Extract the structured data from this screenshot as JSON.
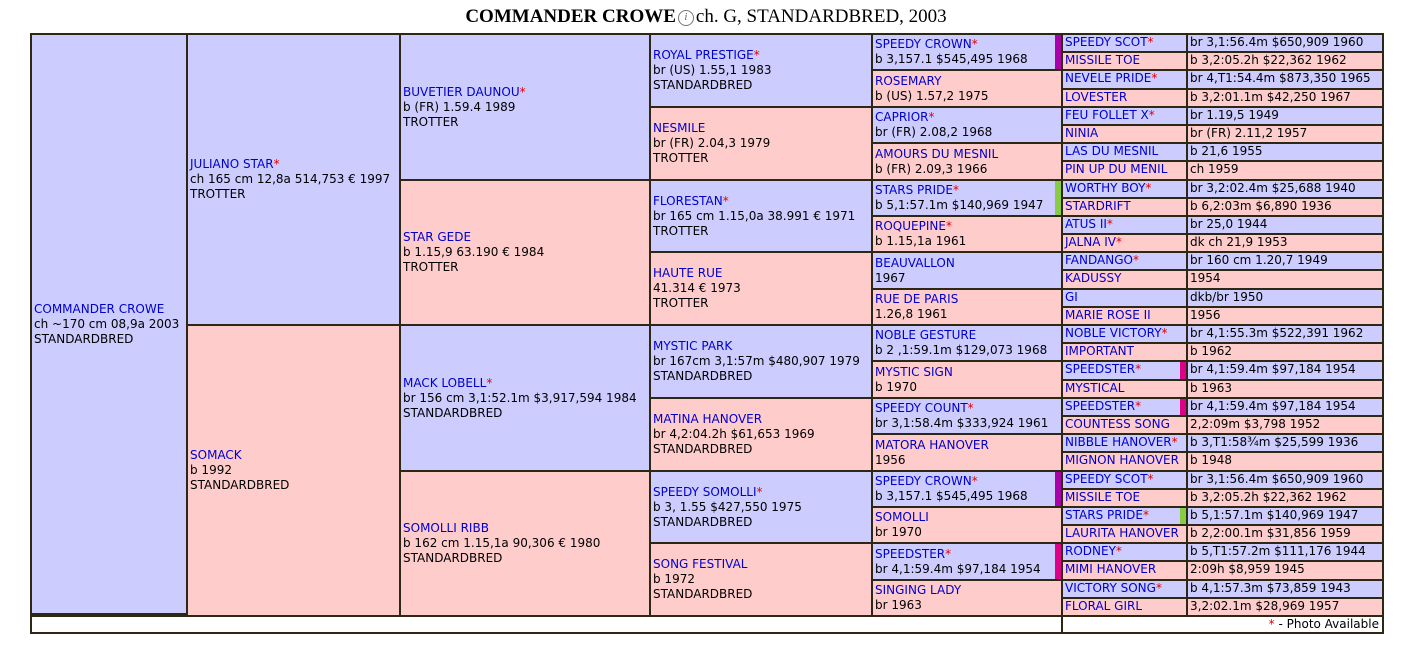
{
  "title": {
    "name": "COMMANDER CROWE",
    "rest": "ch. G, STANDARDBRED, 2003"
  },
  "legend": {
    "star": "*",
    "text": " - Photo Available"
  },
  "subject": {
    "name": "COMMANDER CROWE",
    "lines": [
      "ch ~170 cm 08,9a 2003",
      "STANDARDBRED"
    ]
  },
  "gen1": [
    {
      "name": "JULIANO STAR",
      "star": true,
      "lines": [
        "ch 165 cm 12,8a 514,753 € 1997",
        "TROTTER"
      ]
    },
    {
      "name": "SOMACK",
      "star": false,
      "lines": [
        "b 1992",
        "STANDARDBRED"
      ]
    }
  ],
  "gen2": [
    {
      "name": "BUVETIER DAUNOU",
      "star": true,
      "lines": [
        "b (FR) 1.59.4 1989",
        "TROTTER"
      ]
    },
    {
      "name": "STAR GEDE",
      "star": false,
      "lines": [
        "b 1.15,9 63.190 € 1984",
        "TROTTER"
      ]
    },
    {
      "name": "MACK LOBELL",
      "star": true,
      "lines": [
        "br 156 cm 3,1:52.1m $3,917,594 1984",
        "STANDARDBRED"
      ]
    },
    {
      "name": "SOMOLLI RIBB",
      "star": false,
      "lines": [
        "b 162 cm 1.15,1a 90,306 € 1980",
        "STANDARDBRED"
      ]
    }
  ],
  "gen3": [
    {
      "name": "ROYAL PRESTIGE",
      "star": true,
      "lines": [
        "br (US) 1.55,1 1983",
        "STANDARDBRED"
      ]
    },
    {
      "name": "NESMILE",
      "star": false,
      "lines": [
        "br (FR) 2.04,3 1979",
        "TROTTER"
      ]
    },
    {
      "name": "FLORESTAN",
      "star": true,
      "lines": [
        "br 165 cm 1.15,0a 38.991 € 1971",
        "TROTTER"
      ]
    },
    {
      "name": "HAUTE RUE",
      "star": false,
      "lines": [
        "41.314 € 1973",
        "TROTTER"
      ]
    },
    {
      "name": "MYSTIC PARK",
      "star": false,
      "lines": [
        "br 167cm 3,1:57m $480,907 1979",
        "STANDARDBRED"
      ]
    },
    {
      "name": "MATINA HANOVER",
      "star": false,
      "lines": [
        "br 4,2:04.2h $61,653 1969",
        "STANDARDBRED"
      ]
    },
    {
      "name": "SPEEDY SOMOLLI",
      "star": true,
      "lines": [
        "b 3, 1.55 $427,550 1975",
        "STANDARDBRED"
      ]
    },
    {
      "name": "SONG FESTIVAL",
      "star": false,
      "lines": [
        "b 1972",
        "STANDARDBRED"
      ]
    }
  ],
  "gen4": [
    {
      "name": "SPEEDY CROWN",
      "star": true,
      "info": "b 3,157.1 $545,495 1968",
      "barColor": "#aa00aa"
    },
    {
      "name": "ROSEMARY",
      "star": false,
      "info": "b (US) 1.57,2 1975"
    },
    {
      "name": "CAPRIOR",
      "star": true,
      "info": "br (FR) 2.08,2 1968"
    },
    {
      "name": "AMOURS DU MESNIL",
      "star": false,
      "info": "b (FR) 2.09,3 1966"
    },
    {
      "name": "STARS PRIDE",
      "star": true,
      "info": "b 5,1:57.1m $140,969 1947",
      "barColor": "#88cc44"
    },
    {
      "name": "ROQUEPINE",
      "star": true,
      "info": "b 1.15,1a 1961"
    },
    {
      "name": "BEAUVALLON",
      "star": false,
      "info": "1967"
    },
    {
      "name": "RUE DE PARIS",
      "star": false,
      "info": "1.26,8 1961"
    },
    {
      "name": "NOBLE GESTURE",
      "star": false,
      "info": "b 2 ,1:59.1m $129,073 1968"
    },
    {
      "name": "MYSTIC SIGN",
      "star": false,
      "info": "b 1970"
    },
    {
      "name": "SPEEDY COUNT",
      "star": true,
      "info": "br 3,1:58.4m $333,924 1961"
    },
    {
      "name": "MATORA HANOVER",
      "star": false,
      "info": "1956"
    },
    {
      "name": "SPEEDY CROWN",
      "star": true,
      "info": "b 3,157.1 $545,495 1968",
      "barColor": "#aa00aa"
    },
    {
      "name": "SOMOLLI",
      "star": false,
      "info": "br 1970"
    },
    {
      "name": "SPEEDSTER",
      "star": true,
      "info": "br 4,1:59.4m $97,184 1954",
      "barColor": "#dd0088"
    },
    {
      "name": "SINGING LADY",
      "star": false,
      "info": "br 1963"
    }
  ],
  "gen5": [
    {
      "name": "SPEEDY SCOT",
      "star": true,
      "info": "br 3,1:56.4m $650,909 1960"
    },
    {
      "name": "MISSILE TOE",
      "star": false,
      "info": "b 3,2:05.2h $22,362 1962"
    },
    {
      "name": "NEVELE PRIDE",
      "star": true,
      "info": "br 4,T1:54.4m $873,350 1965"
    },
    {
      "name": "LOVESTER",
      "star": false,
      "info": "b 3,2:01.1m $42,250 1967"
    },
    {
      "name": "FEU FOLLET X",
      "star": true,
      "info": "br 1.19,5 1949"
    },
    {
      "name": "NINIA",
      "star": false,
      "info": "br (FR) 2.11,2 1957"
    },
    {
      "name": "LAS DU MESNIL",
      "star": false,
      "info": "b 21,6 1955"
    },
    {
      "name": "PIN UP DU MENIL",
      "star": false,
      "info": "ch 1959"
    },
    {
      "name": "WORTHY BOY",
      "star": true,
      "info": "br 3,2:02.4m $25,688 1940"
    },
    {
      "name": "STARDRIFT",
      "star": false,
      "info": "b 6,2:03m $6,890 1936"
    },
    {
      "name": "ATUS II",
      "star": true,
      "info": "br 25,0 1944"
    },
    {
      "name": "JALNA IV",
      "star": true,
      "info": "dk ch 21,9 1953"
    },
    {
      "name": "FANDANGO",
      "star": true,
      "info": "br 160 cm 1.20,7 1949"
    },
    {
      "name": "KADUSSY",
      "star": false,
      "info": "1954"
    },
    {
      "name": "GI",
      "star": false,
      "info": "dkb/br 1950"
    },
    {
      "name": "MARIE ROSE II",
      "star": false,
      "info": "1956"
    },
    {
      "name": "NOBLE VICTORY",
      "star": true,
      "info": "br 4,1:55.3m $522,391 1962"
    },
    {
      "name": "IMPORTANT",
      "star": false,
      "info": "b 1962"
    },
    {
      "name": "SPEEDSTER",
      "star": true,
      "info": "br 4,1:59.4m $97,184 1954",
      "barColor": "#dd0088"
    },
    {
      "name": "MYSTICAL",
      "star": false,
      "info": "b 1963"
    },
    {
      "name": "SPEEDSTER",
      "star": true,
      "info": "br 4,1:59.4m $97,184 1954",
      "barColor": "#dd0088"
    },
    {
      "name": "COUNTESS SONG",
      "star": false,
      "info": "2,2:09m $3,798 1952"
    },
    {
      "name": "NIBBLE HANOVER",
      "star": true,
      "info": "b 3,T1:58¾m $25,599 1936"
    },
    {
      "name": "MIGNON HANOVER",
      "star": false,
      "info": "b 1948"
    },
    {
      "name": "SPEEDY SCOT",
      "star": true,
      "info": "br 3,1:56.4m $650,909 1960"
    },
    {
      "name": "MISSILE TOE",
      "star": false,
      "info": "b 3,2:05.2h $22,362 1962"
    },
    {
      "name": "STARS PRIDE",
      "star": true,
      "info": "b 5,1:57.1m $140,969 1947",
      "barColor": "#88cc44"
    },
    {
      "name": "LAURITA HANOVER",
      "star": false,
      "info": "b 2,2:00.1m $31,856 1959"
    },
    {
      "name": "RODNEY",
      "star": true,
      "info": "b 5,T1:57.2m $111,176 1944"
    },
    {
      "name": "MIMI HANOVER",
      "star": false,
      "info": "2:09h $8,959 1945"
    },
    {
      "name": "VICTORY SONG",
      "star": true,
      "info": "b 4,1:57.3m $73,859 1943"
    },
    {
      "name": "FLORAL GIRL",
      "star": false,
      "info": "3,2:02.1m $28,969 1957"
    }
  ]
}
